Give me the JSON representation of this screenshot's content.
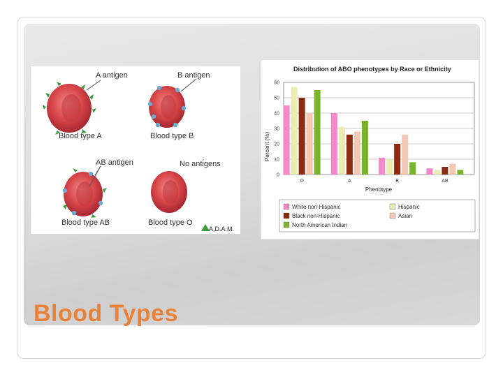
{
  "slide": {
    "title": "Blood Types"
  },
  "antigen_figure": {
    "labels": {
      "a_antigen": "A antigen",
      "b_antigen": "B antigen",
      "ab_antigen": "AB antigen",
      "no_antigens": "No antigens",
      "type_a": "Blood type A",
      "type_b": "Blood type B",
      "type_ab": "Blood type AB",
      "type_o": "Blood type O",
      "watermark": "A.D.A.M."
    },
    "colors": {
      "cell": "#d9474a",
      "cell_dark": "#b22a30",
      "a_antigen": "#3e9a3e",
      "b_antigen": "#6fa8c8"
    }
  },
  "chart_data": {
    "type": "bar",
    "title": "Distribution of ABO phenotypes by Race or Ethnicity",
    "xlabel": "Phenotype",
    "ylabel": "Percent (%)",
    "ylim": [
      0,
      60
    ],
    "yticks": [
      0,
      10,
      20,
      30,
      40,
      50,
      60
    ],
    "categories": [
      "O",
      "A",
      "B",
      "AB"
    ],
    "series": [
      {
        "name": "White non-Hispanic",
        "color": "#f08ac8",
        "values": [
          45,
          40,
          11,
          4
        ]
      },
      {
        "name": "Hispanic",
        "color": "#ececb0",
        "values": [
          57,
          31,
          10,
          3
        ]
      },
      {
        "name": "Black non-Hispanic",
        "color": "#8b2c12",
        "values": [
          50,
          26,
          20,
          5
        ]
      },
      {
        "name": "Asian",
        "color": "#f2c8b4",
        "values": [
          40,
          28,
          26,
          7
        ]
      },
      {
        "name": "North American Indian",
        "color": "#7ab32e",
        "values": [
          55,
          35,
          8,
          3
        ]
      }
    ],
    "legend_position": "bottom",
    "grid": true
  }
}
